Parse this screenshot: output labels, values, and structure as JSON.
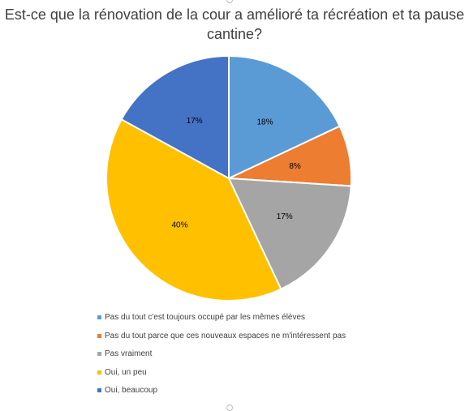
{
  "colors": {
    "title": "#404040",
    "slice_border": "#ffffff",
    "label": "#000000"
  },
  "chart_data": {
    "type": "pie",
    "title": "Est-ce que la rénovation de la cour a amélioré ta récréation et ta pause cantine?",
    "legend_position": "bottom",
    "start_angle_deg": 0,
    "direction": "clockwise",
    "slices": [
      {
        "label": "Pas du tout c'est toujours occupé par les mêmes élèves",
        "value": 18,
        "display": "18%",
        "color": "#5B9BD5"
      },
      {
        "label": "Pas du tout parce que ces nouveaux espaces ne m'intéressent pas",
        "value": 8,
        "display": "8%",
        "color": "#ED7D31"
      },
      {
        "label": "Pas vraiment",
        "value": 17,
        "display": "17%",
        "color": "#A5A5A5"
      },
      {
        "label": "Oui, un peu",
        "value": 40,
        "display": "40%",
        "color": "#FFC000"
      },
      {
        "label": "Oui, beaucoup",
        "value": 17,
        "display": "17%",
        "color": "#4472C4"
      }
    ]
  }
}
